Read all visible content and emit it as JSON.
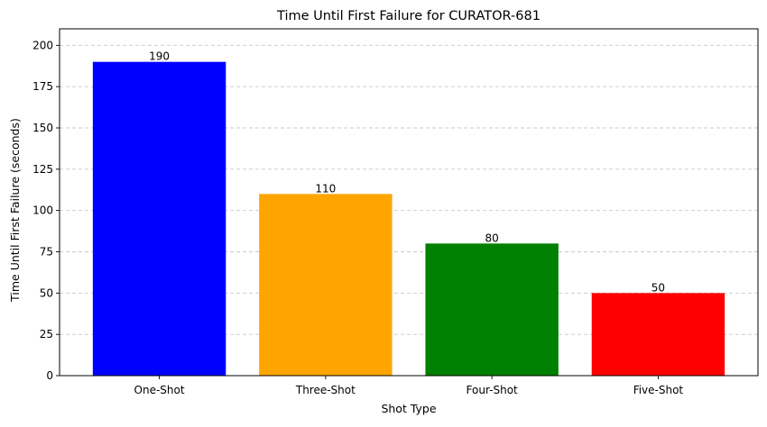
{
  "chart_data": {
    "type": "bar",
    "title": "Time Until First Failure for CURATOR-681",
    "xlabel": "Shot Type",
    "ylabel": "Time Until First Failure (seconds)",
    "categories": [
      "One-Shot",
      "Three-Shot",
      "Four-Shot",
      "Five-Shot"
    ],
    "values": [
      190,
      110,
      80,
      50
    ],
    "data_labels": [
      "190",
      "110",
      "80",
      "50"
    ],
    "colors": [
      "#0000ff",
      "#ffa500",
      "#008000",
      "#ff0000"
    ],
    "ylim": [
      0,
      210
    ],
    "yticks": [
      0,
      25,
      50,
      75,
      100,
      125,
      150,
      175,
      200
    ],
    "grid": {
      "axis": "y",
      "style": "dashed",
      "color": "#c8c8c8"
    },
    "legend": "none"
  }
}
